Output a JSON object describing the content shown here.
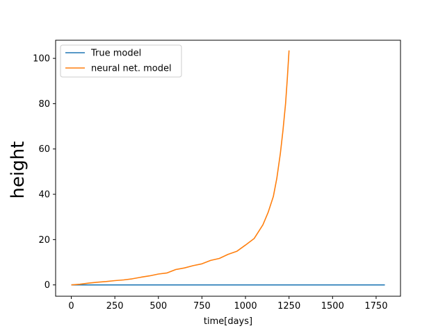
{
  "chart_data": {
    "type": "line",
    "xlabel": "time[days]",
    "ylabel": "height",
    "xlim": [
      -90,
      1890
    ],
    "ylim": [
      -5,
      108
    ],
    "xticks": [
      0,
      250,
      500,
      750,
      1000,
      1250,
      1500,
      1750
    ],
    "yticks": [
      0,
      20,
      40,
      60,
      80,
      100
    ],
    "legend_position": "upper-left",
    "grid": false,
    "series": [
      {
        "name": "True model",
        "color": "#1f77b4",
        "x": [
          0,
          1800
        ],
        "y": [
          0,
          0
        ]
      },
      {
        "name": "neural net. model",
        "color": "#ff7f0e",
        "x": [
          0,
          50,
          100,
          150,
          200,
          250,
          300,
          350,
          400,
          450,
          500,
          550,
          600,
          650,
          700,
          750,
          800,
          850,
          900,
          950,
          1000,
          1050,
          1100,
          1130,
          1160,
          1180,
          1200,
          1215,
          1230,
          1240,
          1250
        ],
        "y": [
          0,
          0.3,
          0.8,
          1.2,
          1.5,
          1.9,
          2.2,
          2.7,
          3.4,
          4.0,
          4.8,
          5.3,
          6.8,
          7.5,
          8.5,
          9.3,
          10.8,
          11.7,
          13.5,
          14.8,
          17.6,
          20.5,
          26.5,
          32.0,
          39.0,
          47.0,
          58.0,
          68.0,
          80.0,
          91.0,
          103.5
        ]
      }
    ]
  }
}
